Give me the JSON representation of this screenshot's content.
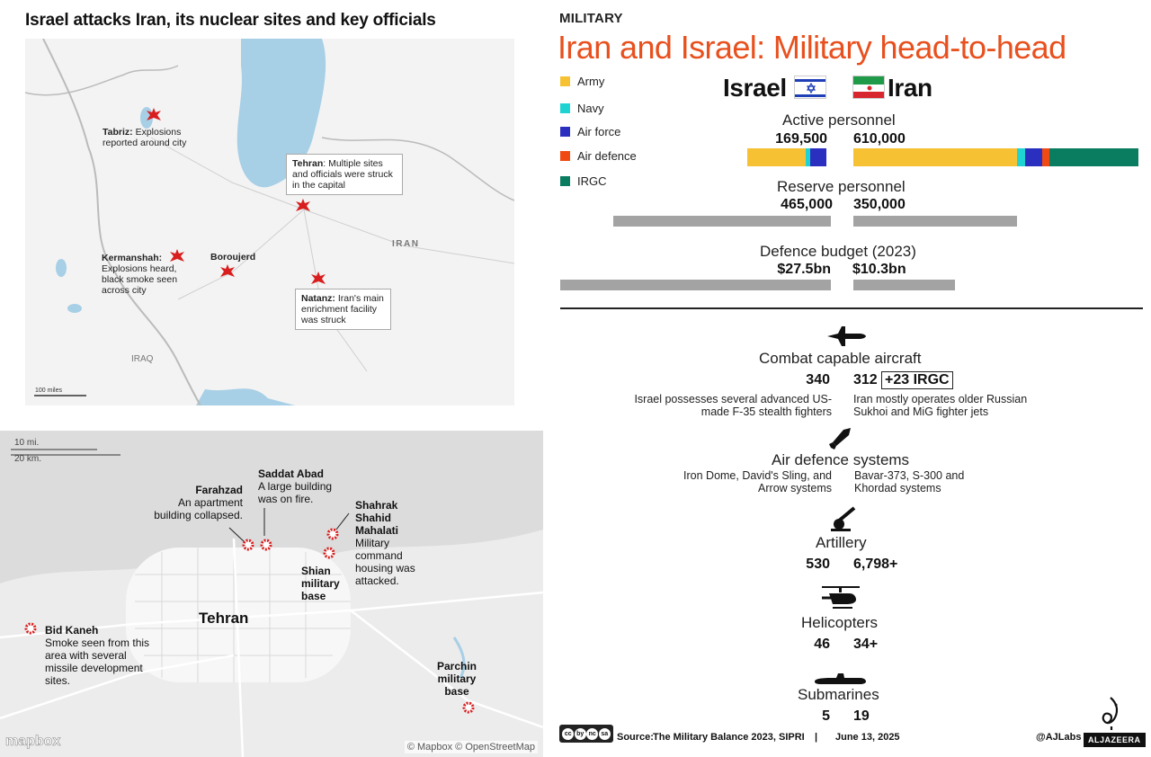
{
  "left": {
    "title": "Israel attacks Iran, its nuclear sites and key officials",
    "top_map": {
      "country_label": "IRAN",
      "iraq_label": "IRAQ",
      "scale": "100 miles",
      "callouts": {
        "tabriz_name": "Tabriz:",
        "tabriz_text": "Explosions reported around city",
        "tehran_name": "Tehran",
        "tehran_text": ": Multiple sites and officials were struck in the capital",
        "kermanshah_name": "Kermanshah:",
        "kermanshah_text": "Explosions heard, black smoke seen across city",
        "boroujerd_name": "Boroujerd",
        "natanz_name": "Natanz:",
        "natanz_text": "Iran's main enrichment facility was struck"
      }
    },
    "bottom_map": {
      "scale_mi": "10 mi.",
      "scale_km": "20 km.",
      "city": "Tehran",
      "farahzad_name": "Farahzad",
      "farahzad_text": "An apartment building collapsed.",
      "saddat_name": "Saddat Abad",
      "saddat_text": "A large building was on fire.",
      "shahrak_name": "Shahrak Shahid Mahalati",
      "shahrak_text": "Military command housing was attacked.",
      "shian_name": "Shian military base",
      "bidkaneh_name": "Bid Kaneh",
      "bidkaneh_text": "Smoke seen from this area with several missile development sites.",
      "parchin_name": "Parchin military base",
      "logo": "mapbox",
      "credit": "© Mapbox © OpenStreetMap"
    }
  },
  "right": {
    "kicker": "MILITARY",
    "title": "Iran and Israel: Military head-to-head",
    "countries": {
      "left": "Israel",
      "right": "Iran"
    },
    "legend": [
      {
        "label": "Army",
        "color": "#f6c234"
      },
      {
        "label": "Navy",
        "color": "#1fd3d3"
      },
      {
        "label": "Air force",
        "color": "#2b2fbf"
      },
      {
        "label": "Air defence",
        "color": "#f04a12"
      },
      {
        "label": "IRGC",
        "color": "#0a7d60"
      }
    ],
    "sections": {
      "active": {
        "title": "Active personnel",
        "israel": "169,500",
        "iran": "610,000"
      },
      "reserve": {
        "title": "Reserve personnel",
        "israel": "465,000",
        "iran": "350,000"
      },
      "budget": {
        "title": "Defence budget (2023)",
        "israel": "$27.5bn",
        "iran": "$10.3bn"
      },
      "aircraft": {
        "title": "Combat capable aircraft",
        "israel": "340",
        "iran": "312",
        "iran_extra": "+23 IRGC",
        "israel_desc": "Israel possesses several advanced US-made F-35 stealth fighters",
        "iran_desc": "Iran mostly operates older Russian Sukhoi and MiG fighter jets"
      },
      "airdef": {
        "title": "Air defence systems",
        "israel_desc": "Iron Dome, David's Sling, and Arrow systems",
        "iran_desc": "Bavar-373, S-300 and Khordad systems"
      },
      "artillery": {
        "title": "Artillery",
        "israel": "530",
        "iran": "6,798+"
      },
      "helicopters": {
        "title": "Helicopters",
        "israel": "46",
        "iran": "34+"
      },
      "submarines": {
        "title": "Submarines",
        "israel": "5",
        "iran": "19"
      }
    },
    "footer": {
      "source_label": "Source:",
      "source": "The Military Balance 2023, SIPRI",
      "sep": "|",
      "date": "June 13, 2025",
      "handle": "@AJLabs",
      "logo": "ALJAZEERA",
      "cc": [
        "cc",
        "by",
        "nc",
        "sa"
      ]
    }
  },
  "chart_data": {
    "type": "bar",
    "title": "Iran and Israel: Military head-to-head",
    "categories": [
      "Active personnel",
      "Reserve personnel",
      "Defence budget (2023)"
    ],
    "series": [
      {
        "name": "Israel",
        "values": [
          169500,
          465000,
          27.5
        ]
      },
      {
        "name": "Iran",
        "values": [
          610000,
          350000,
          10.3
        ]
      }
    ],
    "active_breakdown": {
      "components": [
        "Army",
        "Navy",
        "Air force",
        "Air defence",
        "IRGC"
      ],
      "israel": [
        126000,
        9500,
        34000,
        0,
        0
      ],
      "iran": [
        350000,
        18000,
        37000,
        15000,
        190000
      ]
    },
    "units": {
      "budget": "$bn"
    },
    "legend": "left"
  }
}
